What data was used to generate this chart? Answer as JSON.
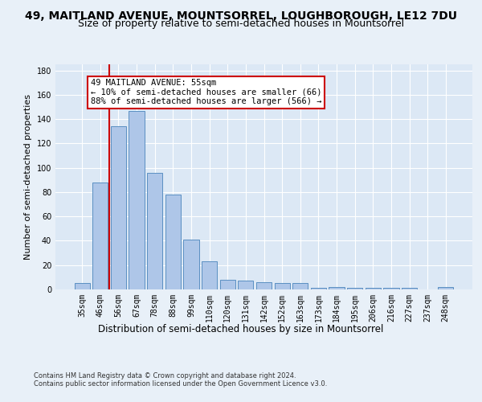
{
  "title_line1": "49, MAITLAND AVENUE, MOUNTSORREL, LOUGHBOROUGH, LE12 7DU",
  "title_line2": "Size of property relative to semi-detached houses in Mountsorrel",
  "xlabel": "Distribution of semi-detached houses by size in Mountsorrel",
  "ylabel": "Number of semi-detached properties",
  "footer_line1": "Contains HM Land Registry data © Crown copyright and database right 2024.",
  "footer_line2": "Contains public sector information licensed under the Open Government Licence v3.0.",
  "categories": [
    "35sqm",
    "46sqm",
    "56sqm",
    "67sqm",
    "78sqm",
    "88sqm",
    "99sqm",
    "110sqm",
    "120sqm",
    "131sqm",
    "142sqm",
    "152sqm",
    "163sqm",
    "173sqm",
    "184sqm",
    "195sqm",
    "206sqm",
    "216sqm",
    "227sqm",
    "237sqm",
    "248sqm"
  ],
  "values": [
    5,
    88,
    134,
    147,
    96,
    78,
    41,
    23,
    8,
    7,
    6,
    5,
    5,
    1,
    2,
    1,
    1,
    1,
    1,
    0,
    2
  ],
  "bar_color": "#aec6e8",
  "bar_edge_color": "#5a8fc2",
  "red_line_x": 1.5,
  "annotation_text_line1": "49 MAITLAND AVENUE: 55sqm",
  "annotation_text_line2": "← 10% of semi-detached houses are smaller (66)",
  "annotation_text_line3": "88% of semi-detached houses are larger (566) →",
  "ylim": [
    0,
    185
  ],
  "yticks": [
    0,
    20,
    40,
    60,
    80,
    100,
    120,
    140,
    160,
    180
  ],
  "red_line_color": "#cc0000",
  "annotation_box_facecolor": "#ffffff",
  "annotation_box_edgecolor": "#cc0000",
  "bg_color": "#e8f0f8",
  "plot_bg_color": "#dce8f5",
  "grid_color": "#ffffff",
  "title_fontsize": 10,
  "subtitle_fontsize": 9,
  "ylabel_fontsize": 8,
  "xlabel_fontsize": 8.5,
  "tick_fontsize": 7,
  "footer_fontsize": 6,
  "annotation_fontsize": 7.5
}
